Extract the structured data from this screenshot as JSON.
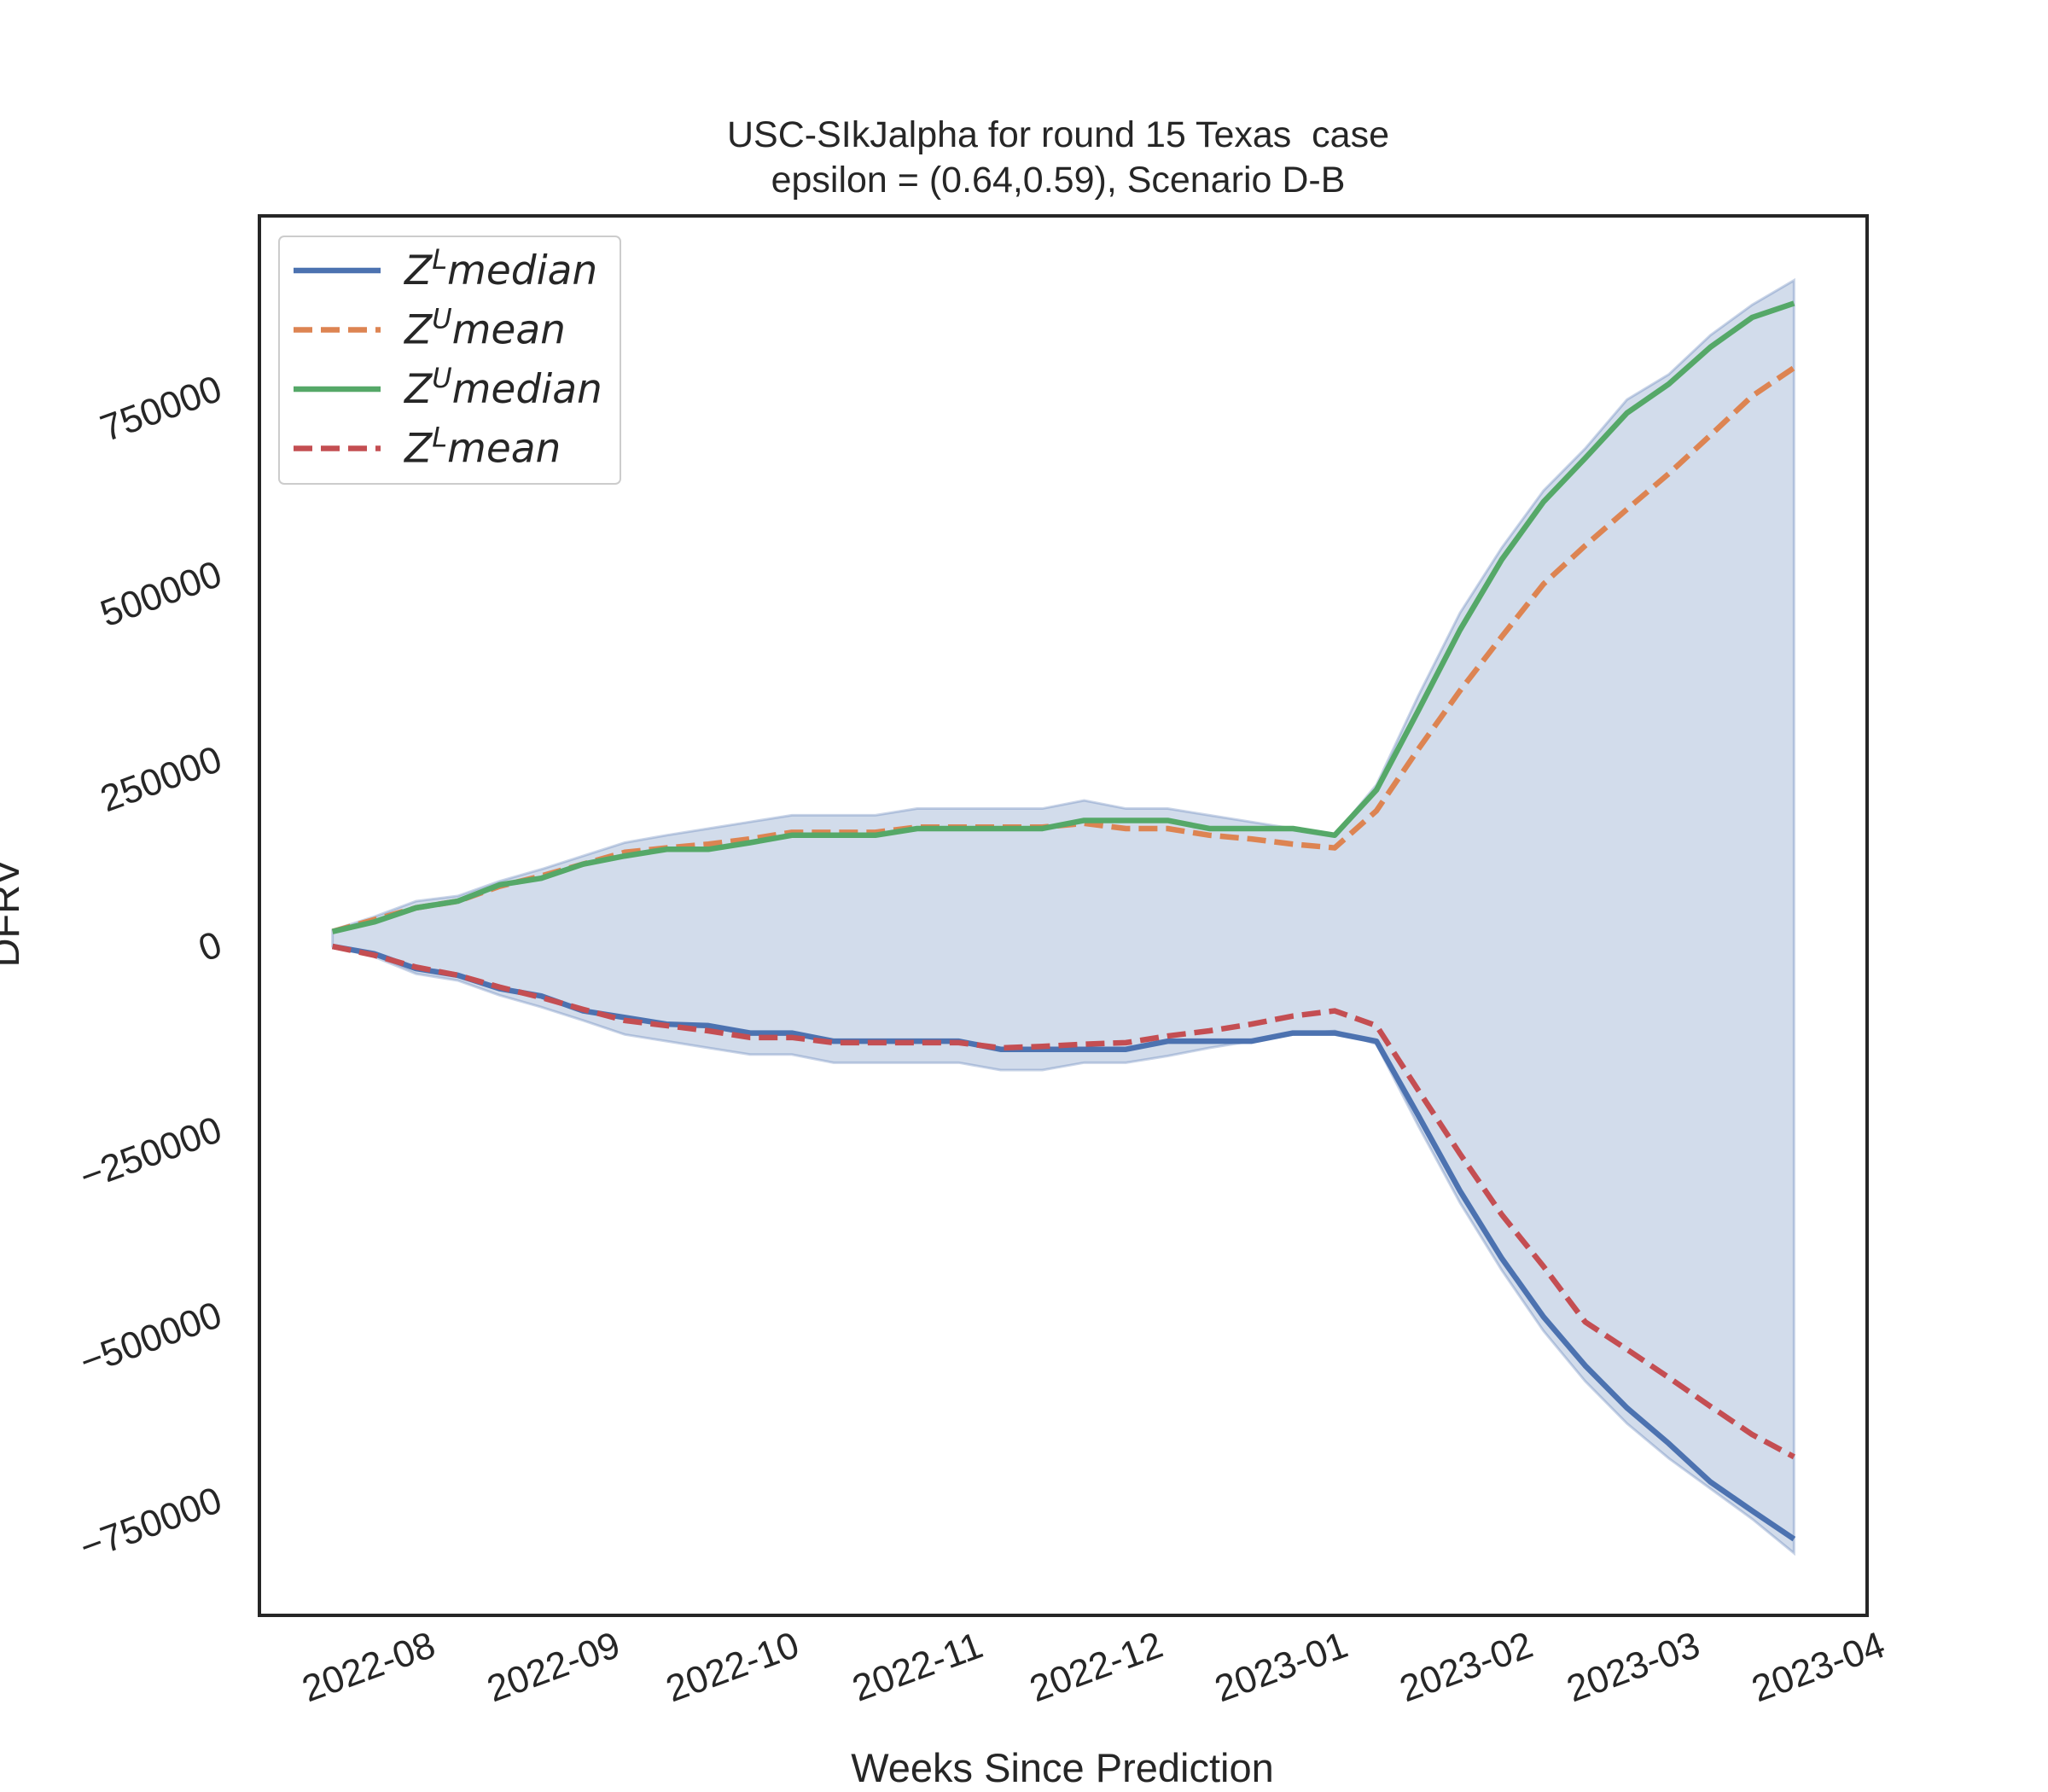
{
  "chart_data": {
    "type": "line",
    "title": "USC-SIkJalpha for round 15 Texas  case",
    "subtitle": "epsilon = (0.64,0.59), Scenario D-B",
    "x_label": "Weeks Since Prediction",
    "y_label": "DFRV",
    "x": [
      0,
      1,
      2,
      3,
      4,
      5,
      6,
      7,
      8,
      9,
      10,
      11,
      12,
      13,
      14,
      15,
      16,
      17,
      18,
      19,
      20,
      21,
      22,
      23,
      24,
      25,
      26,
      27,
      28,
      29,
      30,
      31,
      32,
      33,
      34,
      35
    ],
    "xlim": [
      -1.75,
      36.75
    ],
    "xticks": [
      {
        "value": 1.286,
        "label": "2022-08"
      },
      {
        "value": 5.714,
        "label": "2022-09"
      },
      {
        "value": 10,
        "label": "2022-10"
      },
      {
        "value": 14.43,
        "label": "2022-11"
      },
      {
        "value": 18.71,
        "label": "2022-12"
      },
      {
        "value": 23.14,
        "label": "2023-01"
      },
      {
        "value": 27.57,
        "label": "2023-02"
      },
      {
        "value": 31.57,
        "label": "2023-03"
      },
      {
        "value": 36,
        "label": "2023-04"
      }
    ],
    "ylim": [
      -907000,
      982000
    ],
    "yticks": [
      {
        "value": -750000,
        "label": "−750000"
      },
      {
        "value": -500000,
        "label": "−500000"
      },
      {
        "value": -250000,
        "label": "−250000"
      },
      0,
      250000,
      500000,
      750000
    ],
    "grid": false,
    "legend": "upper left",
    "band": {
      "color": "#4c72b0",
      "upper": [
        18000,
        36000,
        57000,
        64000,
        84000,
        100000,
        118000,
        136000,
        146000,
        155000,
        164000,
        173000,
        173000,
        173000,
        182000,
        182000,
        182000,
        182000,
        193000,
        182000,
        182000,
        173000,
        164000,
        155000,
        146000,
        214000,
        334000,
        446000,
        534000,
        611000,
        668000,
        734000,
        768000,
        821000,
        862000,
        895000
      ],
      "lower": [
        -4000,
        -18000,
        -41000,
        -50000,
        -70000,
        -86000,
        -104000,
        -123000,
        -132000,
        -141000,
        -150000,
        -150000,
        -161000,
        -161000,
        -161000,
        -161000,
        -171000,
        -171000,
        -161000,
        -161000,
        -152000,
        -141000,
        -132000,
        -123000,
        -118000,
        -136000,
        -246000,
        -350000,
        -441000,
        -523000,
        -591000,
        -648000,
        -695000,
        -736000,
        -777000,
        -823000
      ]
    },
    "series": [
      {
        "name": {
          "base": "Z",
          "sup": "L",
          "text": "median"
        },
        "color": "#4c72b0",
        "dashed": false,
        "values": [
          -4000,
          -14000,
          -34000,
          -43000,
          -61000,
          -71000,
          -91000,
          -100000,
          -109000,
          -111000,
          -121000,
          -121000,
          -132000,
          -132000,
          -132000,
          -132000,
          -143000,
          -143000,
          -143000,
          -143000,
          -132000,
          -132000,
          -132000,
          -121000,
          -121000,
          -132000,
          -232000,
          -334000,
          -425000,
          -504000,
          -570000,
          -627000,
          -675000,
          -727000,
          -766000,
          -804000
        ]
      },
      {
        "name": {
          "base": "Z",
          "sup": "U",
          "text": "mean"
        },
        "color": "#dd8452",
        "dashed": true,
        "values": [
          16000,
          32000,
          48000,
          57000,
          77000,
          91000,
          107000,
          123000,
          129000,
          134000,
          141000,
          150000,
          150000,
          150000,
          157000,
          157000,
          157000,
          157000,
          162000,
          155000,
          155000,
          146000,
          141000,
          134000,
          129000,
          179000,
          262000,
          341000,
          414000,
          485000,
          537000,
          586000,
          634000,
          686000,
          739000,
          777000
        ]
      },
      {
        "name": {
          "base": "Z",
          "sup": "U",
          "text": "median"
        },
        "color": "#55a868",
        "dashed": false,
        "values": [
          16000,
          29000,
          48000,
          57000,
          79000,
          88000,
          107000,
          118000,
          127000,
          127000,
          136000,
          146000,
          146000,
          146000,
          155000,
          155000,
          155000,
          155000,
          166000,
          166000,
          166000,
          155000,
          155000,
          155000,
          146000,
          207000,
          314000,
          423000,
          518000,
          596000,
          655000,
          716000,
          755000,
          805000,
          845000,
          864000
        ]
      },
      {
        "name": {
          "base": "Z",
          "sup": "L",
          "text": "mean"
        },
        "color": "#c44e52",
        "dashed": true,
        "values": [
          -4000,
          -16000,
          -32000,
          -43000,
          -59000,
          -73000,
          -89000,
          -104000,
          -111000,
          -118000,
          -127000,
          -127000,
          -134000,
          -134000,
          -134000,
          -134000,
          -141000,
          -139000,
          -136000,
          -134000,
          -125000,
          -118000,
          -109000,
          -98000,
          -91000,
          -111000,
          -198000,
          -284000,
          -366000,
          -436000,
          -511000,
          -548000,
          -586000,
          -625000,
          -663000,
          -693000
        ]
      }
    ]
  }
}
